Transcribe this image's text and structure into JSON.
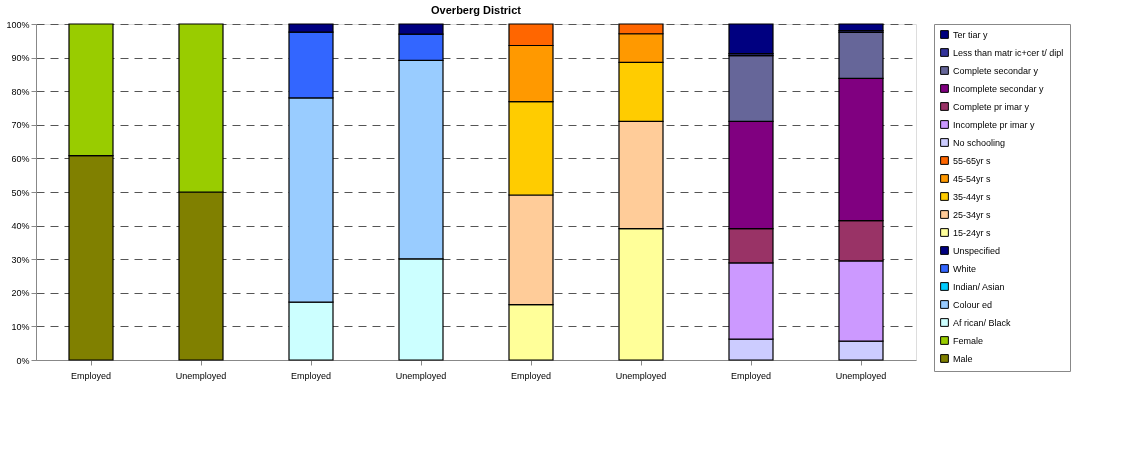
{
  "chart_data": {
    "type": "bar",
    "title": "Overberg District",
    "stacked": true,
    "grid": "y",
    "legend": "right",
    "categories": [
      "Employed",
      "Unemployed",
      "Employed",
      "Unemployed",
      "Employed",
      "Unemployed",
      "Employed",
      "Unemployed"
    ],
    "ylim": [
      0,
      100
    ],
    "yticks": [
      {
        "value": 0,
        "label": "0%"
      },
      {
        "value": 10,
        "label": "10%"
      },
      {
        "value": 20,
        "label": "20%"
      },
      {
        "value": 30,
        "label": "30%"
      },
      {
        "value": 40,
        "label": "40%"
      },
      {
        "value": 50,
        "label": "50%"
      },
      {
        "value": 60,
        "label": "60%"
      },
      {
        "value": 70,
        "label": "70%"
      },
      {
        "value": 80,
        "label": "80%"
      },
      {
        "value": 90,
        "label": "90%"
      },
      {
        "value": 100,
        "label": "100%"
      }
    ],
    "series": [
      {
        "name": "Male",
        "color": "#808000",
        "values": [
          60.8,
          50,
          null,
          null,
          null,
          null,
          null,
          null
        ]
      },
      {
        "name": "Female",
        "color": "#99cc00",
        "values": [
          39.2,
          50,
          null,
          null,
          null,
          null,
          null,
          null
        ]
      },
      {
        "name": "Af rican/ Black",
        "color": "#ccffff",
        "values": [
          null,
          null,
          17.2,
          30.1,
          null,
          null,
          null,
          null
        ]
      },
      {
        "name": "Colour ed",
        "color": "#99ccff",
        "values": [
          null,
          null,
          60.8,
          59.1,
          null,
          null,
          null,
          null
        ]
      },
      {
        "name": "Indian/ Asian",
        "color": "#00ccff",
        "values": [
          null,
          null,
          null,
          null,
          null,
          null,
          null,
          null
        ]
      },
      {
        "name": "White",
        "color": "#3366ff",
        "values": [
          null,
          null,
          19.6,
          7.8,
          null,
          null,
          null,
          null
        ]
      },
      {
        "name": "Unspecified",
        "color": "#000080",
        "values": [
          null,
          null,
          2.4,
          3.0,
          null,
          null,
          null,
          null
        ]
      },
      {
        "name": "15-24yr s",
        "color": "#ffff99",
        "values": [
          null,
          null,
          null,
          null,
          16.5,
          39.1,
          null,
          null
        ]
      },
      {
        "name": "25-34yr s",
        "color": "#ffcc99",
        "values": [
          null,
          null,
          null,
          null,
          32.6,
          31.9,
          null,
          null
        ]
      },
      {
        "name": "35-44yr s",
        "color": "#ffcc00",
        "values": [
          null,
          null,
          null,
          null,
          27.8,
          17.6,
          null,
          null
        ]
      },
      {
        "name": "45-54yr s",
        "color": "#ff9900",
        "values": [
          null,
          null,
          null,
          null,
          16.7,
          8.5,
          null,
          null
        ]
      },
      {
        "name": "55-65yr s",
        "color": "#ff6600",
        "values": [
          null,
          null,
          null,
          null,
          6.4,
          2.9,
          null,
          null
        ]
      },
      {
        "name": "No schooling",
        "color": "#ccccff",
        "values": [
          null,
          null,
          null,
          null,
          null,
          null,
          6.2,
          5.6
        ]
      },
      {
        "name": "Incomplete pr imar y",
        "color": "#cc99ff",
        "values": [
          null,
          null,
          null,
          null,
          null,
          null,
          22.7,
          23.9
        ]
      },
      {
        "name": "Complete pr imar y",
        "color": "#993366",
        "values": [
          null,
          null,
          null,
          null,
          null,
          null,
          10.2,
          12.0
        ]
      },
      {
        "name": "Incomplete secondar y",
        "color": "#800080",
        "values": [
          null,
          null,
          null,
          null,
          null,
          null,
          31.9,
          42.3
        ]
      },
      {
        "name": "Complete secondar y",
        "color": "#666699",
        "values": [
          null,
          null,
          null,
          null,
          null,
          null,
          19.6,
          13.7
        ]
      },
      {
        "name": "Less than matr ic+cer t/ dipl",
        "color": "#333399",
        "values": [
          null,
          null,
          null,
          null,
          null,
          null,
          0.6,
          0.5
        ]
      },
      {
        "name": "Ter tiar y",
        "color": "#000080",
        "values": [
          null,
          null,
          null,
          null,
          null,
          null,
          8.8,
          2.0
        ]
      }
    ]
  }
}
